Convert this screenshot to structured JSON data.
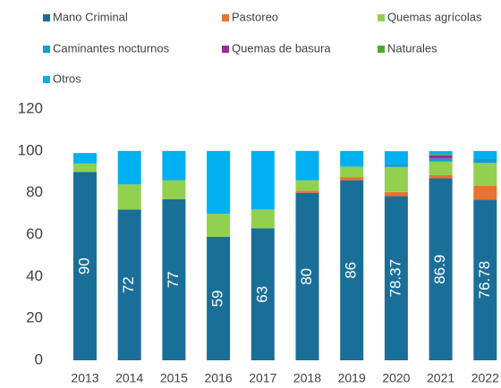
{
  "chart_data": {
    "type": "stacked_bar",
    "categories": [
      "2013",
      "2014",
      "2015",
      "2016",
      "2017",
      "2018",
      "2019",
      "2020",
      "2021",
      "2022"
    ],
    "series": [
      {
        "name": "Mano Criminal",
        "color": "#1a6f98",
        "values": [
          90,
          72,
          77,
          59,
          63,
          80,
          86,
          78.37,
          86.9,
          76.78
        ],
        "data_labels": true
      },
      {
        "name": "Pastoreo",
        "color": "#e97132",
        "values": [
          0,
          0,
          0,
          0,
          0,
          1,
          1.5,
          2,
          1.5,
          6.5
        ]
      },
      {
        "name": "Quemas agrícolas",
        "color": "#92d050",
        "values": [
          4,
          12,
          9,
          11,
          9,
          5,
          5,
          12,
          6.5,
          11
        ]
      },
      {
        "name": "Caminantes nocturnos",
        "color": "#0f9ed5",
        "values": [
          0,
          0,
          0,
          0,
          0,
          0,
          0,
          1.5,
          1.5,
          2
        ]
      },
      {
        "name": "Quemas de basura",
        "color": "#a02b93",
        "values": [
          0,
          0,
          0,
          0,
          0,
          0,
          0,
          0,
          1.5,
          0
        ]
      },
      {
        "name": "Naturales",
        "color": "#4ea72e",
        "values": [
          0,
          0,
          0,
          0,
          0,
          0,
          0,
          0,
          0.5,
          0
        ]
      },
      {
        "name": "Otros",
        "color": "#00b0f0",
        "values": [
          5,
          16,
          14,
          30,
          28,
          14,
          7.5,
          6,
          1.5,
          3.7
        ]
      }
    ],
    "ylim": [
      0,
      120
    ],
    "yticks": [
      0,
      20,
      40,
      60,
      80,
      100,
      120
    ],
    "grid": false,
    "legend": "top"
  }
}
